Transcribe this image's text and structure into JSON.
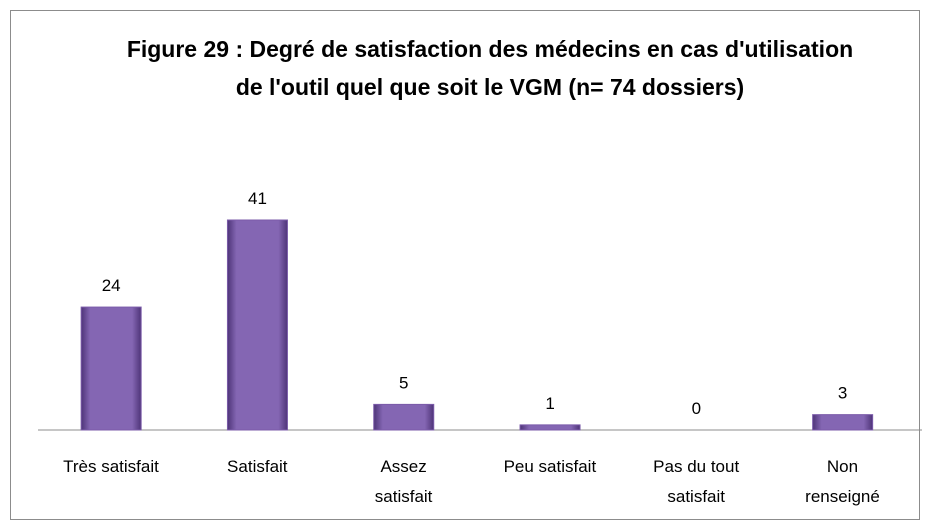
{
  "chart_data": {
    "type": "bar",
    "title": "Figure 29 : Degré de satisfaction des médecins en cas d'utilisation de l'outil quel que soit le VGM (n= 74 dossiers)",
    "categories": [
      "Très satisfait",
      "Satisfait",
      "Assez\nsatisfait",
      "Peu satisfait",
      "Pas du tout\nsatisfait",
      "Non\nrenseigné"
    ],
    "values": [
      24,
      41,
      5,
      1,
      0,
      3
    ],
    "color": "#7b5ba9"
  }
}
